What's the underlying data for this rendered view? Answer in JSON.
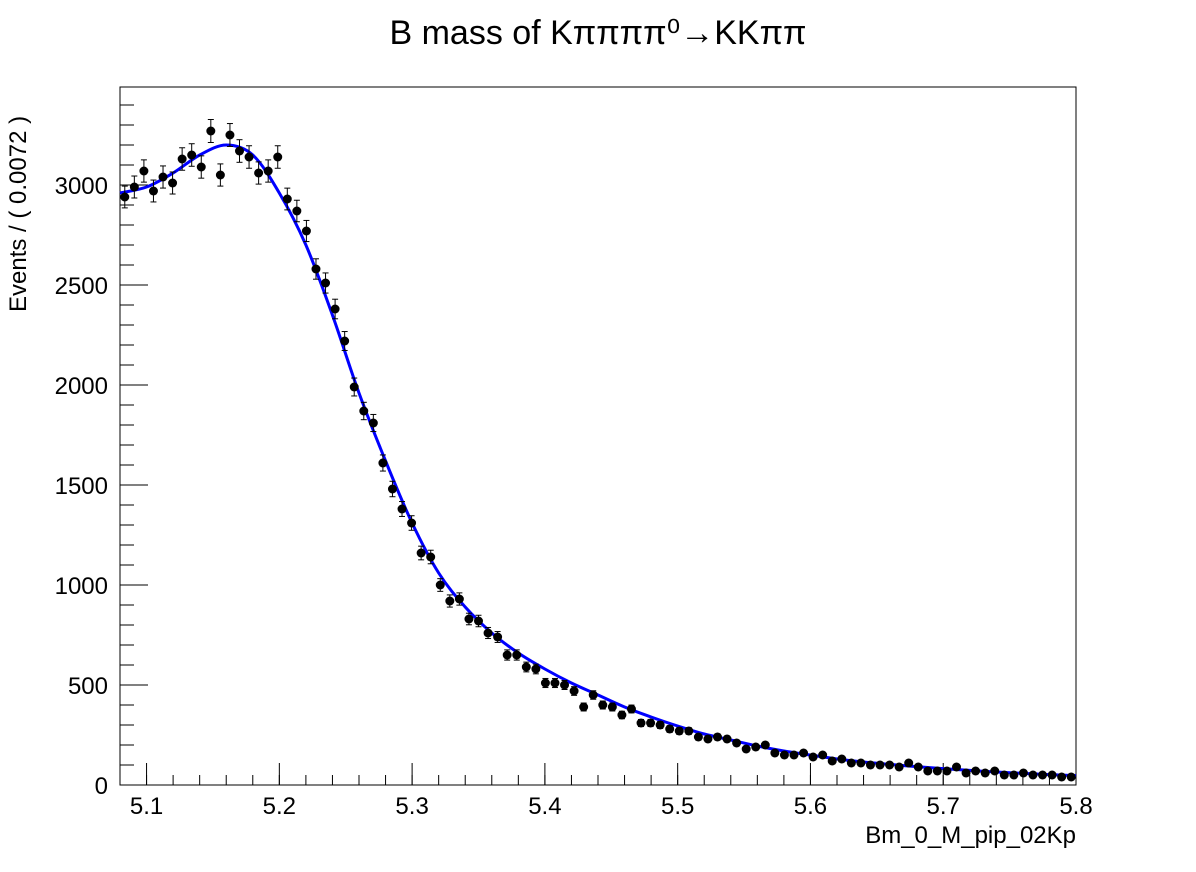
{
  "chart_data": {
    "type": "scatter",
    "title": "B mass of Kππππ⁰→KKππ",
    "xlabel": "Bm_0_M_pip_02Kp",
    "ylabel": "Events / ( 0.0072 )",
    "xlim": [
      5.08,
      5.8
    ],
    "ylim": [
      0,
      3490
    ],
    "x_ticks": [
      5.1,
      5.2,
      5.3,
      5.4,
      5.5,
      5.6,
      5.7,
      5.8
    ],
    "x_tick_labels": [
      "5.1",
      "5.2",
      "5.3",
      "5.4",
      "5.5",
      "5.6",
      "5.7",
      "5.8"
    ],
    "y_ticks": [
      0,
      500,
      1000,
      1500,
      2000,
      2500,
      3000
    ],
    "y_tick_labels": [
      "0",
      "500",
      "1000",
      "1500",
      "2000",
      "2500",
      "3000"
    ],
    "grid": false,
    "series": [
      {
        "kind": "data-points-with-errors",
        "color": "#000000",
        "x": [
          5.0836,
          5.0908,
          5.098,
          5.1052,
          5.1124,
          5.1196,
          5.1268,
          5.134,
          5.1412,
          5.1484,
          5.1556,
          5.1628,
          5.17,
          5.1772,
          5.1844,
          5.1916,
          5.1988,
          5.206,
          5.2132,
          5.2204,
          5.2276,
          5.2348,
          5.242,
          5.2492,
          5.2564,
          5.2636,
          5.2708,
          5.278,
          5.2852,
          5.2924,
          5.2996,
          5.3068,
          5.314,
          5.3212,
          5.3284,
          5.3356,
          5.3428,
          5.35,
          5.3572,
          5.3644,
          5.3716,
          5.3788,
          5.386,
          5.3932,
          5.4004,
          5.4076,
          5.4148,
          5.422,
          5.4292,
          5.4364,
          5.4436,
          5.4508,
          5.458,
          5.4652,
          5.4724,
          5.4796,
          5.4868,
          5.494,
          5.5012,
          5.5084,
          5.5156,
          5.5228,
          5.53,
          5.5372,
          5.5444,
          5.5516,
          5.5588,
          5.566,
          5.5732,
          5.5804,
          5.5876,
          5.5948,
          5.602,
          5.6092,
          5.6164,
          5.6236,
          5.6308,
          5.638,
          5.6452,
          5.6524,
          5.6596,
          5.6668,
          5.674,
          5.6812,
          5.6884,
          5.6956,
          5.7028,
          5.71,
          5.7172,
          5.7244,
          5.7316,
          5.7388,
          5.746,
          5.7532,
          5.7604,
          5.7676,
          5.7748,
          5.782,
          5.7892,
          5.7964
        ],
        "y": [
          2940,
          2990,
          3070,
          2970,
          3040,
          3010,
          3130,
          3150,
          3090,
          3270,
          3050,
          3250,
          3170,
          3140,
          3060,
          3070,
          3140,
          2930,
          2870,
          2770,
          2580,
          2510,
          2380,
          2220,
          1990,
          1870,
          1810,
          1610,
          1480,
          1380,
          1310,
          1160,
          1140,
          1000,
          920,
          930,
          830,
          820,
          760,
          740,
          650,
          650,
          590,
          580,
          510,
          510,
          500,
          470,
          390,
          450,
          400,
          390,
          350,
          380,
          310,
          310,
          300,
          280,
          270,
          270,
          240,
          230,
          240,
          230,
          210,
          180,
          190,
          200,
          160,
          150,
          150,
          160,
          140,
          150,
          120,
          130,
          110,
          110,
          100,
          100,
          100,
          90,
          110,
          90,
          70,
          70,
          70,
          90,
          60,
          70,
          60,
          70,
          50,
          50,
          60,
          50,
          50,
          50,
          40,
          40
        ],
        "y_err": 55
      },
      {
        "kind": "fit-curve",
        "color": "#0000ff",
        "x": [
          5.08,
          5.1,
          5.12,
          5.14,
          5.16,
          5.18,
          5.2,
          5.22,
          5.24,
          5.26,
          5.28,
          5.3,
          5.32,
          5.34,
          5.36,
          5.38,
          5.4,
          5.42,
          5.44,
          5.46,
          5.48,
          5.5,
          5.52,
          5.54,
          5.56,
          5.58,
          5.6,
          5.62,
          5.64,
          5.66,
          5.68,
          5.7,
          5.72,
          5.74,
          5.76,
          5.78,
          5.8
        ],
        "y": [
          2960,
          2990,
          3060,
          3150,
          3200,
          3150,
          2960,
          2700,
          2350,
          1960,
          1620,
          1310,
          1060,
          890,
          760,
          660,
          580,
          510,
          450,
          390,
          340,
          295,
          255,
          225,
          195,
          170,
          150,
          130,
          115,
          103,
          92,
          82,
          73,
          65,
          58,
          52,
          47
        ]
      }
    ]
  }
}
